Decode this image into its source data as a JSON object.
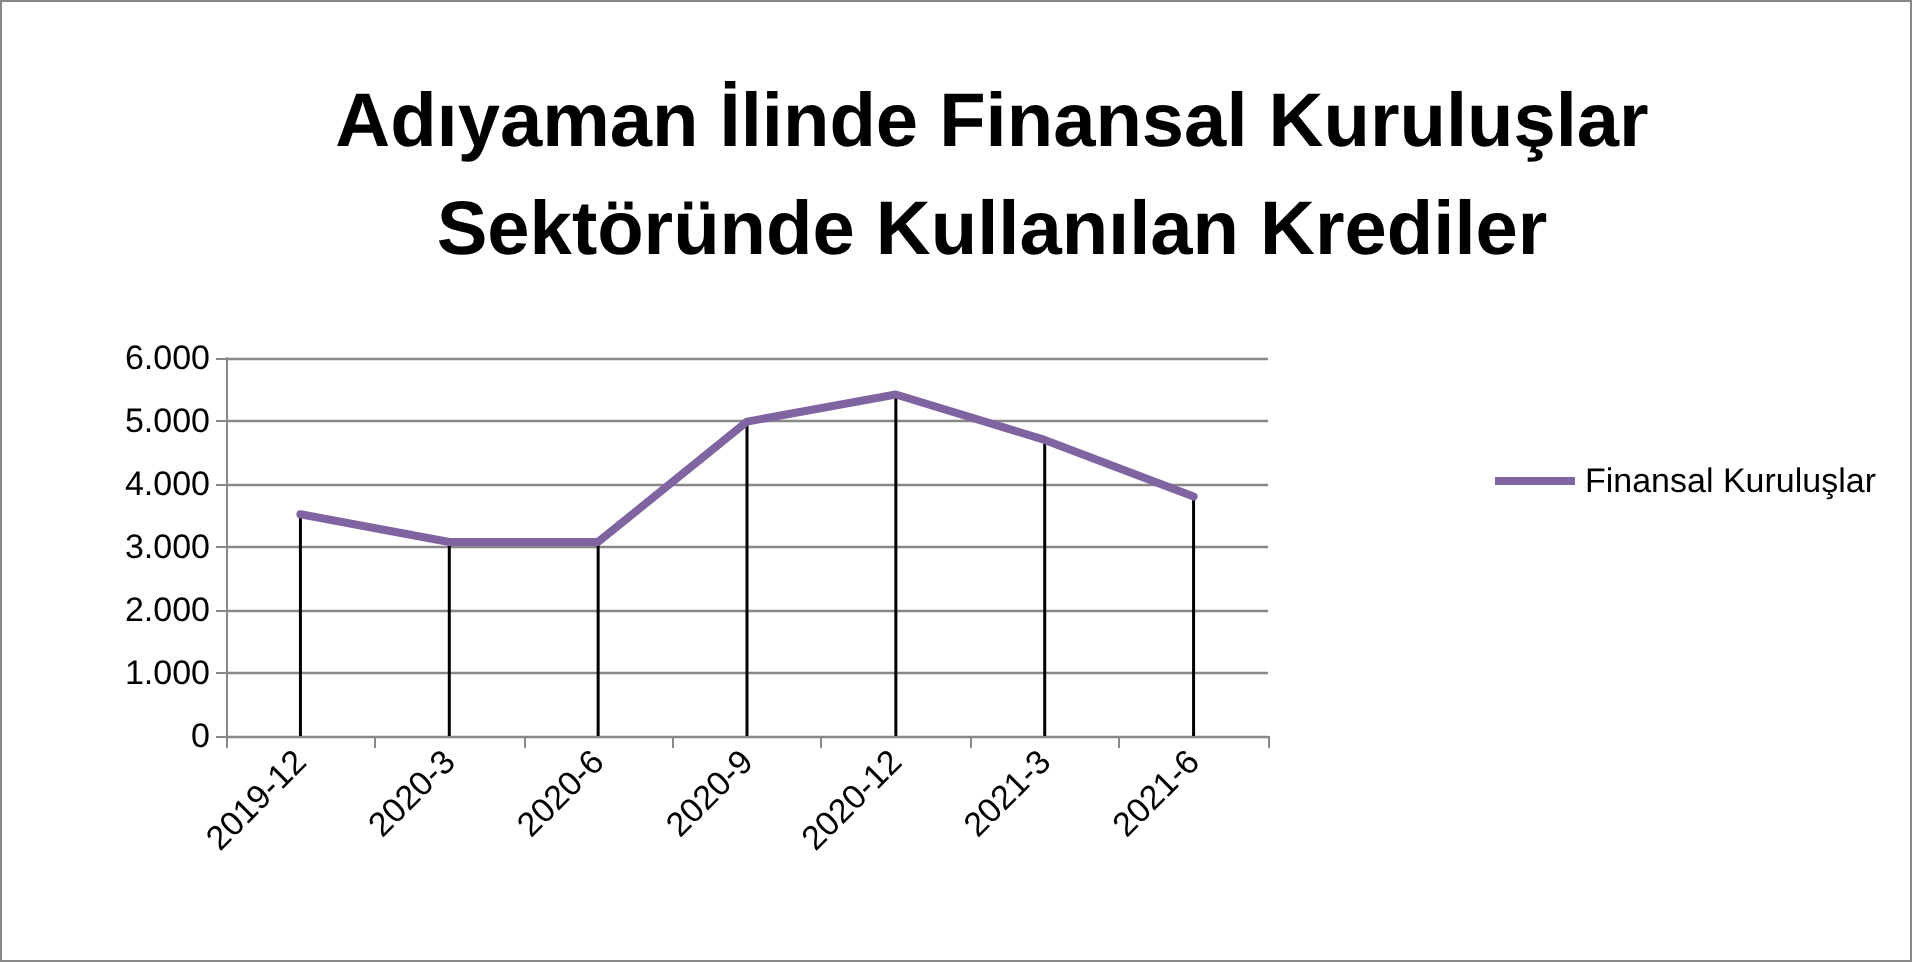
{
  "chart_data": {
    "type": "line",
    "title": "Adıyaman İlinde Finansal Kuruluşlar\nSektöründe Kullanılan Krediler",
    "categories": [
      "2019-12",
      "2020-3",
      "2020-6",
      "2020-9",
      "2020-12",
      "2021-3",
      "2021-6"
    ],
    "series": [
      {
        "name": "Finansal Kuruluşlar",
        "color": "#8064a2",
        "values": [
          3520,
          3080,
          3080,
          4990,
          5420,
          4700,
          3800
        ]
      },
      {
        "type": "bar",
        "color": "#000000",
        "values": [
          3520,
          3080,
          3080,
          4990,
          5420,
          4700,
          3800
        ]
      }
    ],
    "ylim": [
      0,
      6000
    ],
    "yticks": [
      {
        "value": 0,
        "label": "0"
      },
      {
        "value": 1000,
        "label": "1.000"
      },
      {
        "value": 2000,
        "label": "2.000"
      },
      {
        "value": 3000,
        "label": "3.000"
      },
      {
        "value": 4000,
        "label": "4.000"
      },
      {
        "value": 5000,
        "label": "5.000"
      },
      {
        "value": 6000,
        "label": "6.000"
      }
    ],
    "grid": "y",
    "legend": "right",
    "marker": "none",
    "line_style": "solid"
  }
}
